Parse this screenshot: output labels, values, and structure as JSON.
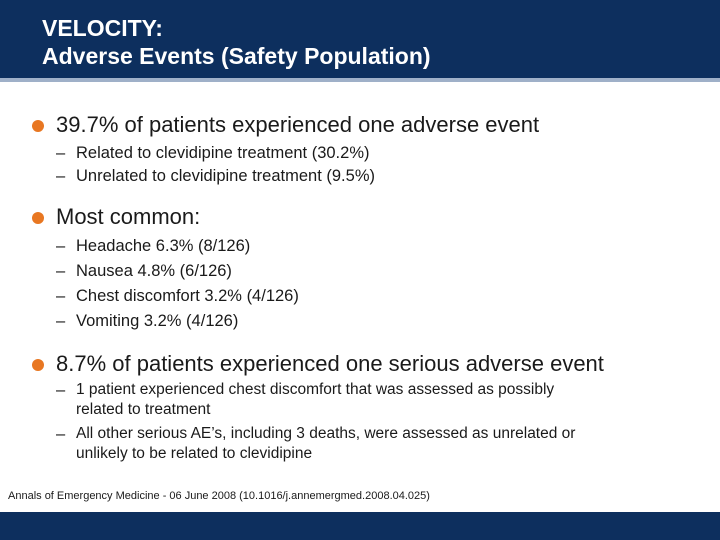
{
  "slide": {
    "title_line1": "VELOCITY:",
    "title_line2": "Adverse Events (Safety Population)",
    "bullets": [
      {
        "text": "39.7% of patients experienced one adverse event",
        "subs": [
          "Related to clevidipine treatment (30.2%)",
          "Unrelated to clevidipine treatment (9.5%)"
        ]
      },
      {
        "text": "Most common:",
        "subs": [
          "Headache 6.3% (8/126)",
          "Nausea 4.8% (6/126)",
          "Chest discomfort 3.2% (4/126)",
          "Vomiting 3.2% (4/126)"
        ]
      },
      {
        "text": "8.7% of patients experienced one serious adverse event",
        "subs": [
          {
            "line1": "1 patient experienced chest discomfort that was assessed as possibly",
            "line2": "related to treatment"
          },
          {
            "line1": "All other serious AE’s, including 3 deaths, were assessed as unrelated or",
            "line2": "unlikely to be related to clevidipine"
          }
        ]
      }
    ],
    "citation": "Annals of Emergency Medicine - 06 June 2008 (10.1016/j.annemergmed.2008.04.025)",
    "dash": "–",
    "colors": {
      "header": "#0d2f5e",
      "bullet": "#e87722",
      "text": "#1a1a1a"
    }
  }
}
